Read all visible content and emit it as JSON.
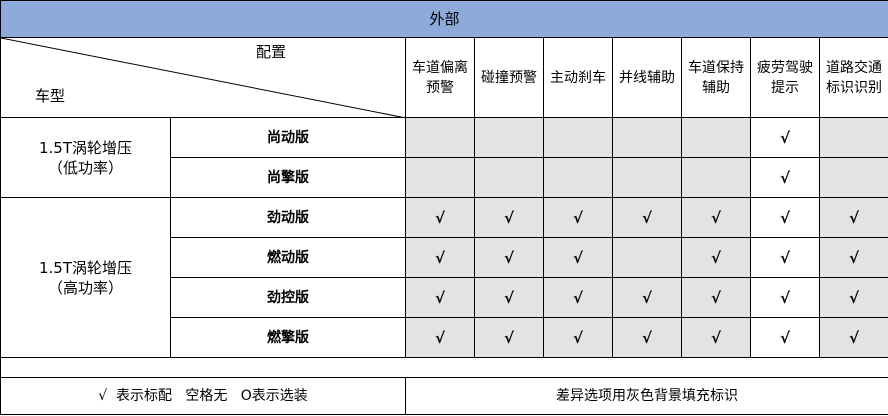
{
  "title": "外部",
  "corner": {
    "config": "配置",
    "model": "车型"
  },
  "features": [
    "车道偏离\n预警",
    "碰撞预警",
    "主动刹车",
    "并线辅助",
    "车道保持\n辅助",
    "疲劳驾驶\n提示",
    "道路交通\n标识识别"
  ],
  "groups": [
    {
      "model": "1.5T涡轮增压\n（低功率）",
      "trims": [
        {
          "name": "尚动版",
          "checks": [
            false,
            false,
            false,
            false,
            false,
            true,
            false
          ]
        },
        {
          "name": "尚擎版",
          "checks": [
            false,
            false,
            false,
            false,
            false,
            true,
            false
          ]
        }
      ]
    },
    {
      "model": "1.5T涡轮增压\n（高功率）",
      "trims": [
        {
          "name": "劲动版",
          "checks": [
            true,
            true,
            true,
            true,
            true,
            true,
            true
          ]
        },
        {
          "name": "燃动版",
          "checks": [
            true,
            true,
            true,
            false,
            true,
            true,
            true
          ]
        },
        {
          "name": "劲控版",
          "checks": [
            true,
            true,
            true,
            true,
            true,
            true,
            true
          ]
        },
        {
          "name": "燃擎版",
          "checks": [
            true,
            true,
            true,
            true,
            true,
            true,
            true
          ]
        }
      ]
    }
  ],
  "check_mark": "√",
  "shaded_columns": [
    0,
    1,
    2,
    3,
    4,
    6
  ],
  "colors": {
    "header": "#8eaadb",
    "shade": "#e3e3e3"
  },
  "footer": {
    "legend": "√  表示标配   空格无   O表示选装",
    "note": "差异选项用灰色背景填充标识"
  }
}
